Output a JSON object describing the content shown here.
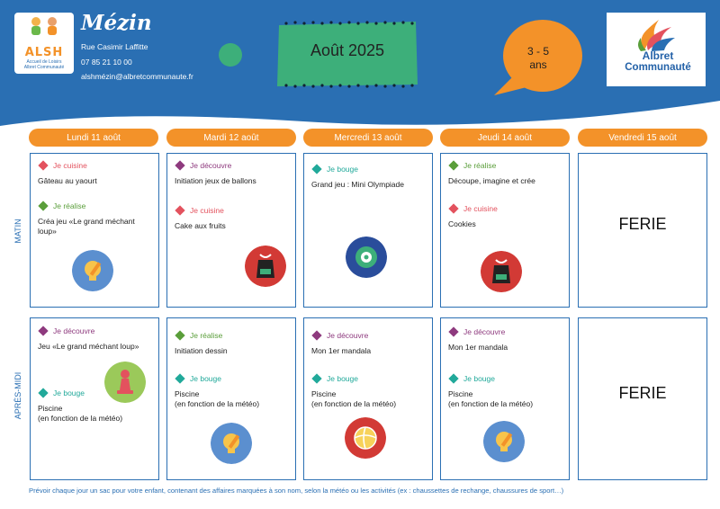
{
  "header": {
    "center_name": "Mézin",
    "address": "Rue Casimir Laffitte",
    "phone": "07 85 21 10 00",
    "email": "alshmézin@albretcommunaute.fr",
    "month": "Août 2025",
    "age_range_line1": "3 - 5",
    "age_range_line2": "ans",
    "alsh_logo": {
      "letters": "ALSH",
      "line1": "Accueil de Loisirs",
      "line2": "Albret Communauté"
    },
    "partner_logo": {
      "line1": "Albret",
      "line2": "Communauté"
    }
  },
  "colors": {
    "blue": "#2a6fb3",
    "orange": "#f39229",
    "green": "#3daf7a",
    "cuisine": "#e3525e",
    "decouvre": "#8e3a7e",
    "realise": "#5a9e3a",
    "bouge": "#21a99a"
  },
  "periods": {
    "morning": "MATIN",
    "afternoon": "APRÈS-MIDI"
  },
  "days": [
    {
      "label": "Lundi 11 août"
    },
    {
      "label": "Mardi 12 août"
    },
    {
      "label": "Mercredi 13 août"
    },
    {
      "label": "Jeudi 14 août"
    },
    {
      "label": "Vendredi 15 août"
    }
  ],
  "matin": {
    "mon": {
      "a_tag": "Je cuisine",
      "a_desc": "Gâteau au yaourt",
      "b_tag": "Je réalise",
      "b_desc": "Créa jeu «Le grand méchant loup»",
      "icon": "lightbulb-pencil-icon"
    },
    "tue": {
      "a_tag": "Je découvre",
      "a_desc": "Initiation jeux de ballons",
      "b_tag": "Je cuisine",
      "b_desc": "Cake aux fruits",
      "icon": "apron-icon"
    },
    "wed": {
      "a_tag": "Je bouge",
      "a_desc": "Grand jeu : Mini Olympiade",
      "icon": "target-icon"
    },
    "thu": {
      "a_tag": "Je réalise",
      "a_desc": "Découpe, imagine et crée",
      "b_tag": "Je cuisine",
      "b_desc": "Cookies",
      "icon": "apron-icon"
    },
    "fri": {
      "text": "FERIE"
    }
  },
  "apresmidi": {
    "mon": {
      "a_tag": "Je découvre",
      "a_desc": "Jeu «Le grand méchant loup»",
      "b_tag": "Je bouge",
      "b_desc_1": "Piscine",
      "b_desc_2": "(en fonction de la météo)",
      "icon": "chess-pawn-icon"
    },
    "tue": {
      "a_tag": "Je réalise",
      "a_desc": "Initiation dessin",
      "b_tag": "Je bouge",
      "b_desc_1": "Piscine",
      "b_desc_2": "(en fonction de la météo)",
      "icon": "lightbulb-pencil-icon"
    },
    "wed": {
      "a_tag": "Je découvre",
      "a_desc": "Mon 1er mandala",
      "b_tag": "Je bouge",
      "b_desc_1": "Piscine",
      "b_desc_2": "(en fonction de la météo)",
      "icon": "volleyball-icon"
    },
    "thu": {
      "a_tag": "Je découvre",
      "a_desc": "Mon 1er mandala",
      "b_tag": "Je bouge",
      "b_desc_1": "Piscine",
      "b_desc_2": "(en fonction de la météo)",
      "icon": "lightbulb-pencil-icon"
    },
    "fri": {
      "text": "FERIE"
    }
  },
  "footer": {
    "note": "Prévoir chaque jour un sac pour votre enfant, contenant des affaires marquées à son nom, selon la météo ou les activités (ex : chaussettes de rechange, chaussures de sport…)"
  }
}
